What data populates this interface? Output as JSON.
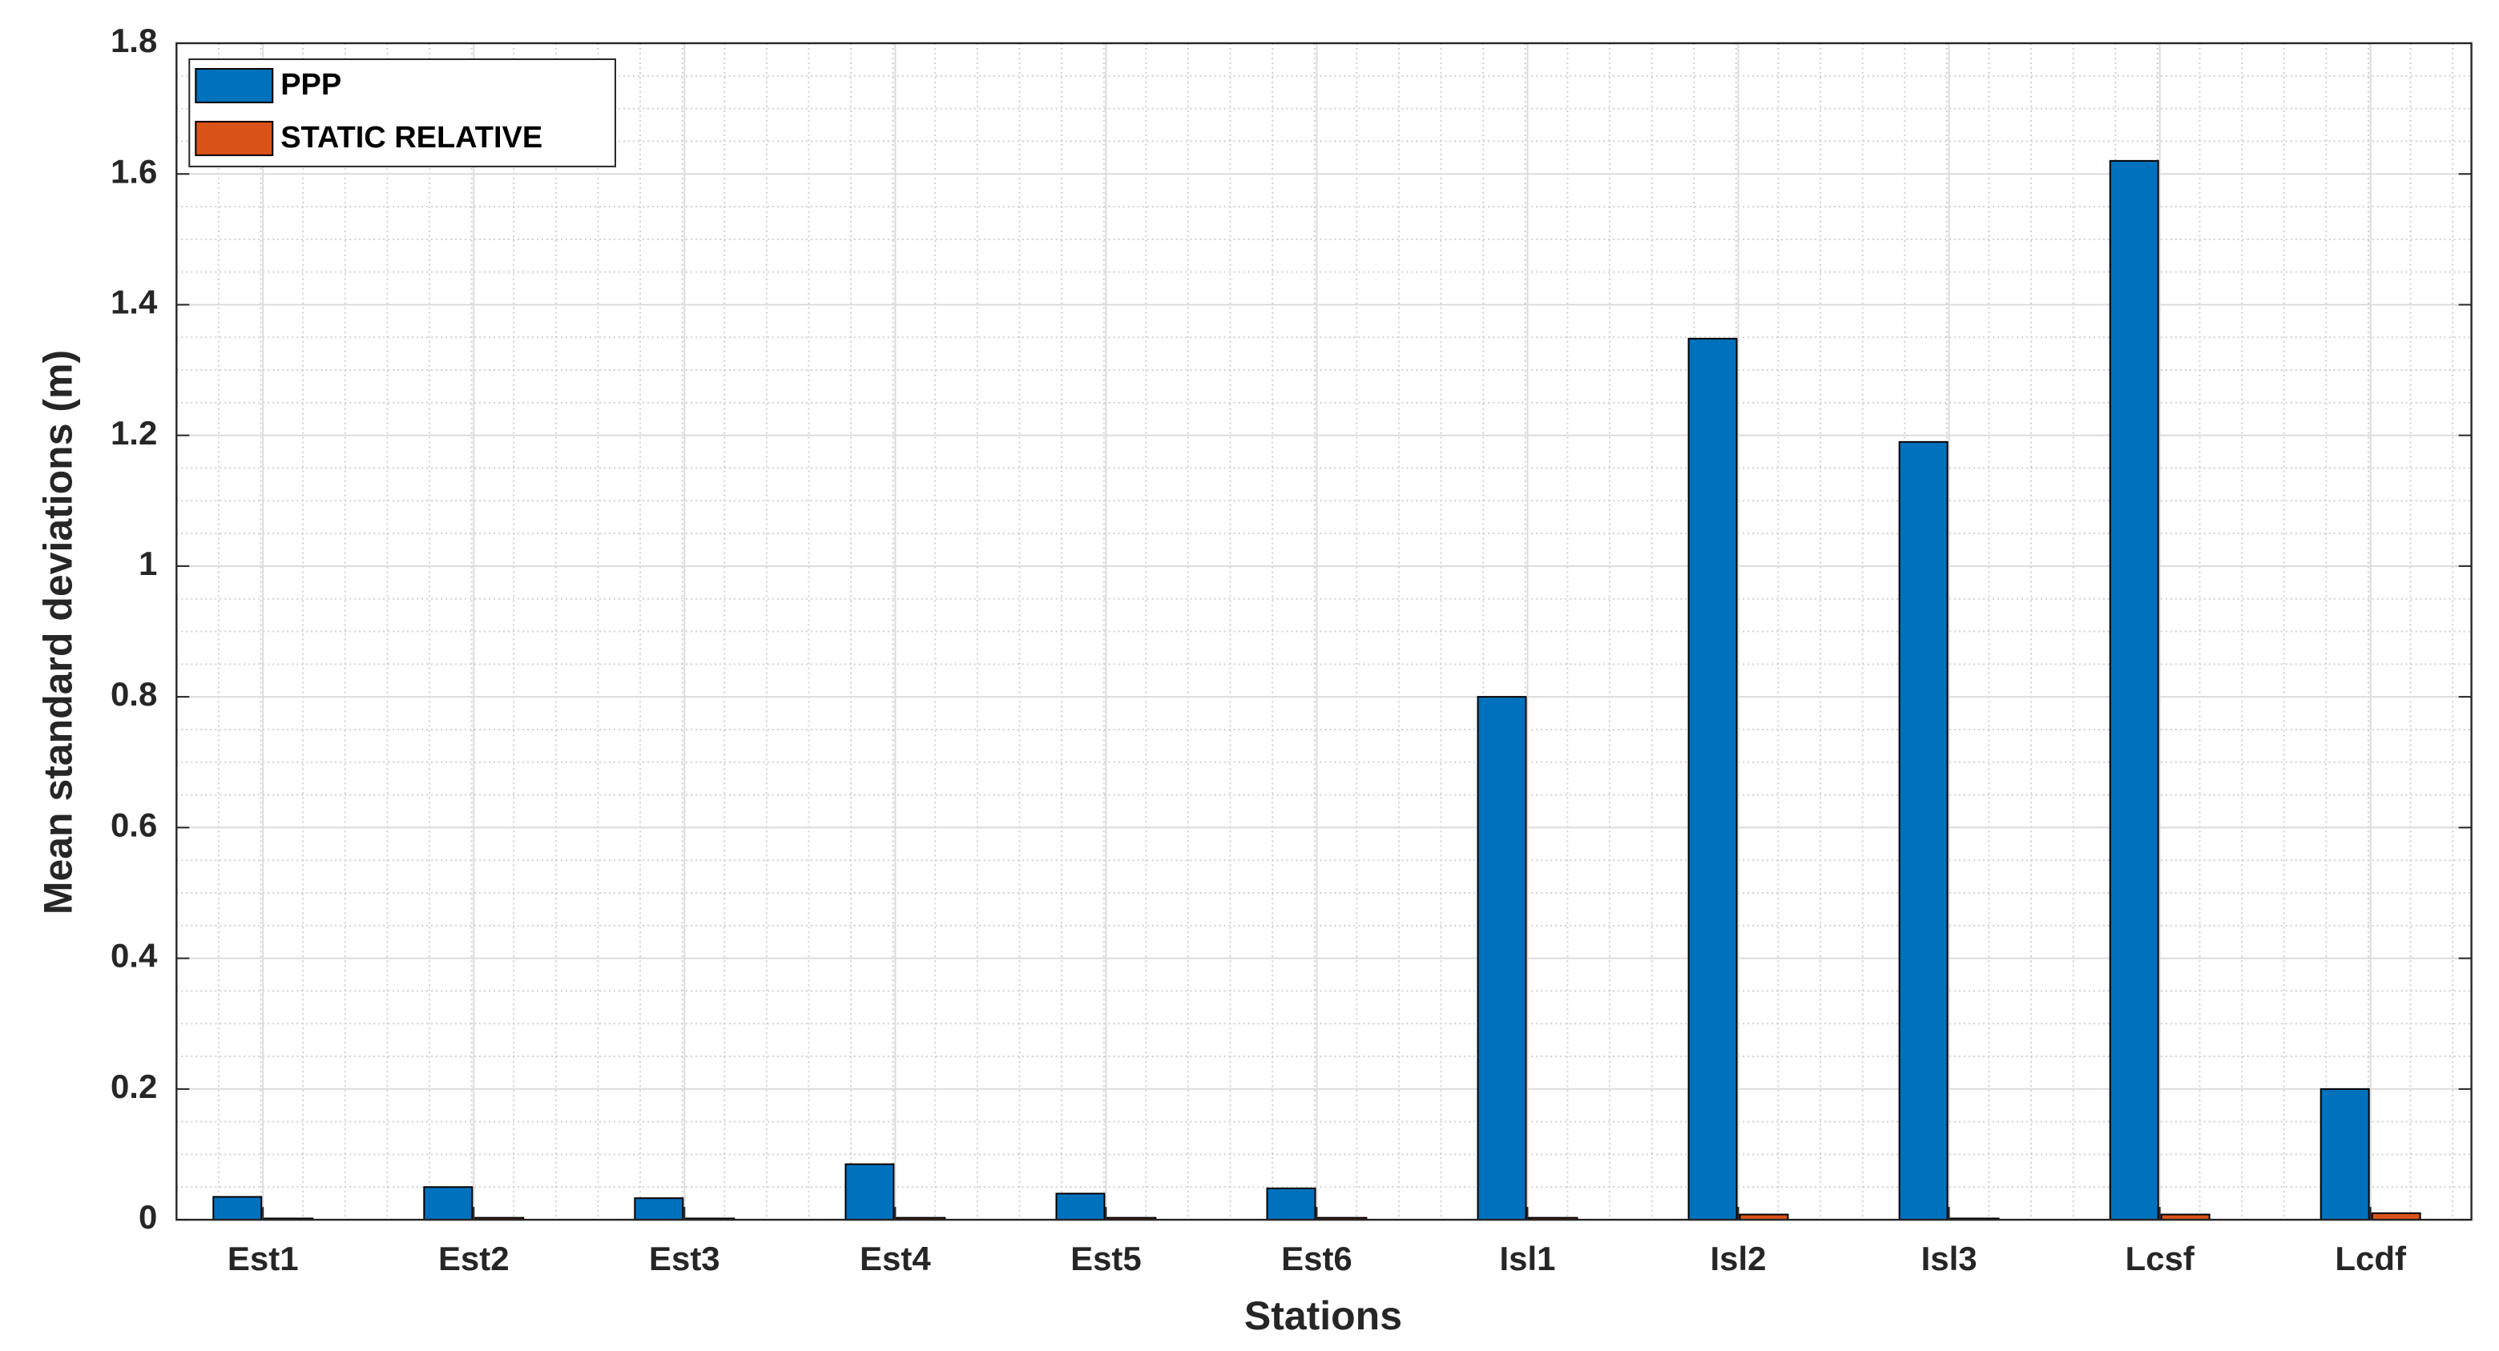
{
  "chart_data": {
    "type": "bar",
    "xlabel": "Stations",
    "ylabel": "Mean standard deviations (m)",
    "categories": [
      "Est1",
      "Est2",
      "Est3",
      "Est4",
      "Est5",
      "Est6",
      "Isl1",
      "Isl2",
      "Isl3",
      "Lcsf",
      "Lcdf"
    ],
    "series": [
      {
        "name": "PPP",
        "color": "#0072bd",
        "values": [
          0.035,
          0.05,
          0.033,
          0.085,
          0.04,
          0.048,
          0.8,
          1.348,
          1.19,
          1.62,
          0.2
        ]
      },
      {
        "name": "STATIC RELATIVE",
        "color": "#d95319",
        "values": [
          0.002,
          0.003,
          0.002,
          0.003,
          0.003,
          0.003,
          0.003,
          0.008,
          0.002,
          0.008,
          0.01
        ]
      }
    ],
    "ylim": [
      0,
      1.8
    ],
    "yticks": [
      0,
      0.2,
      0.4,
      0.6,
      0.8,
      1,
      1.2,
      1.4,
      1.6,
      1.8
    ],
    "grid": true,
    "legend": "upper-left"
  }
}
